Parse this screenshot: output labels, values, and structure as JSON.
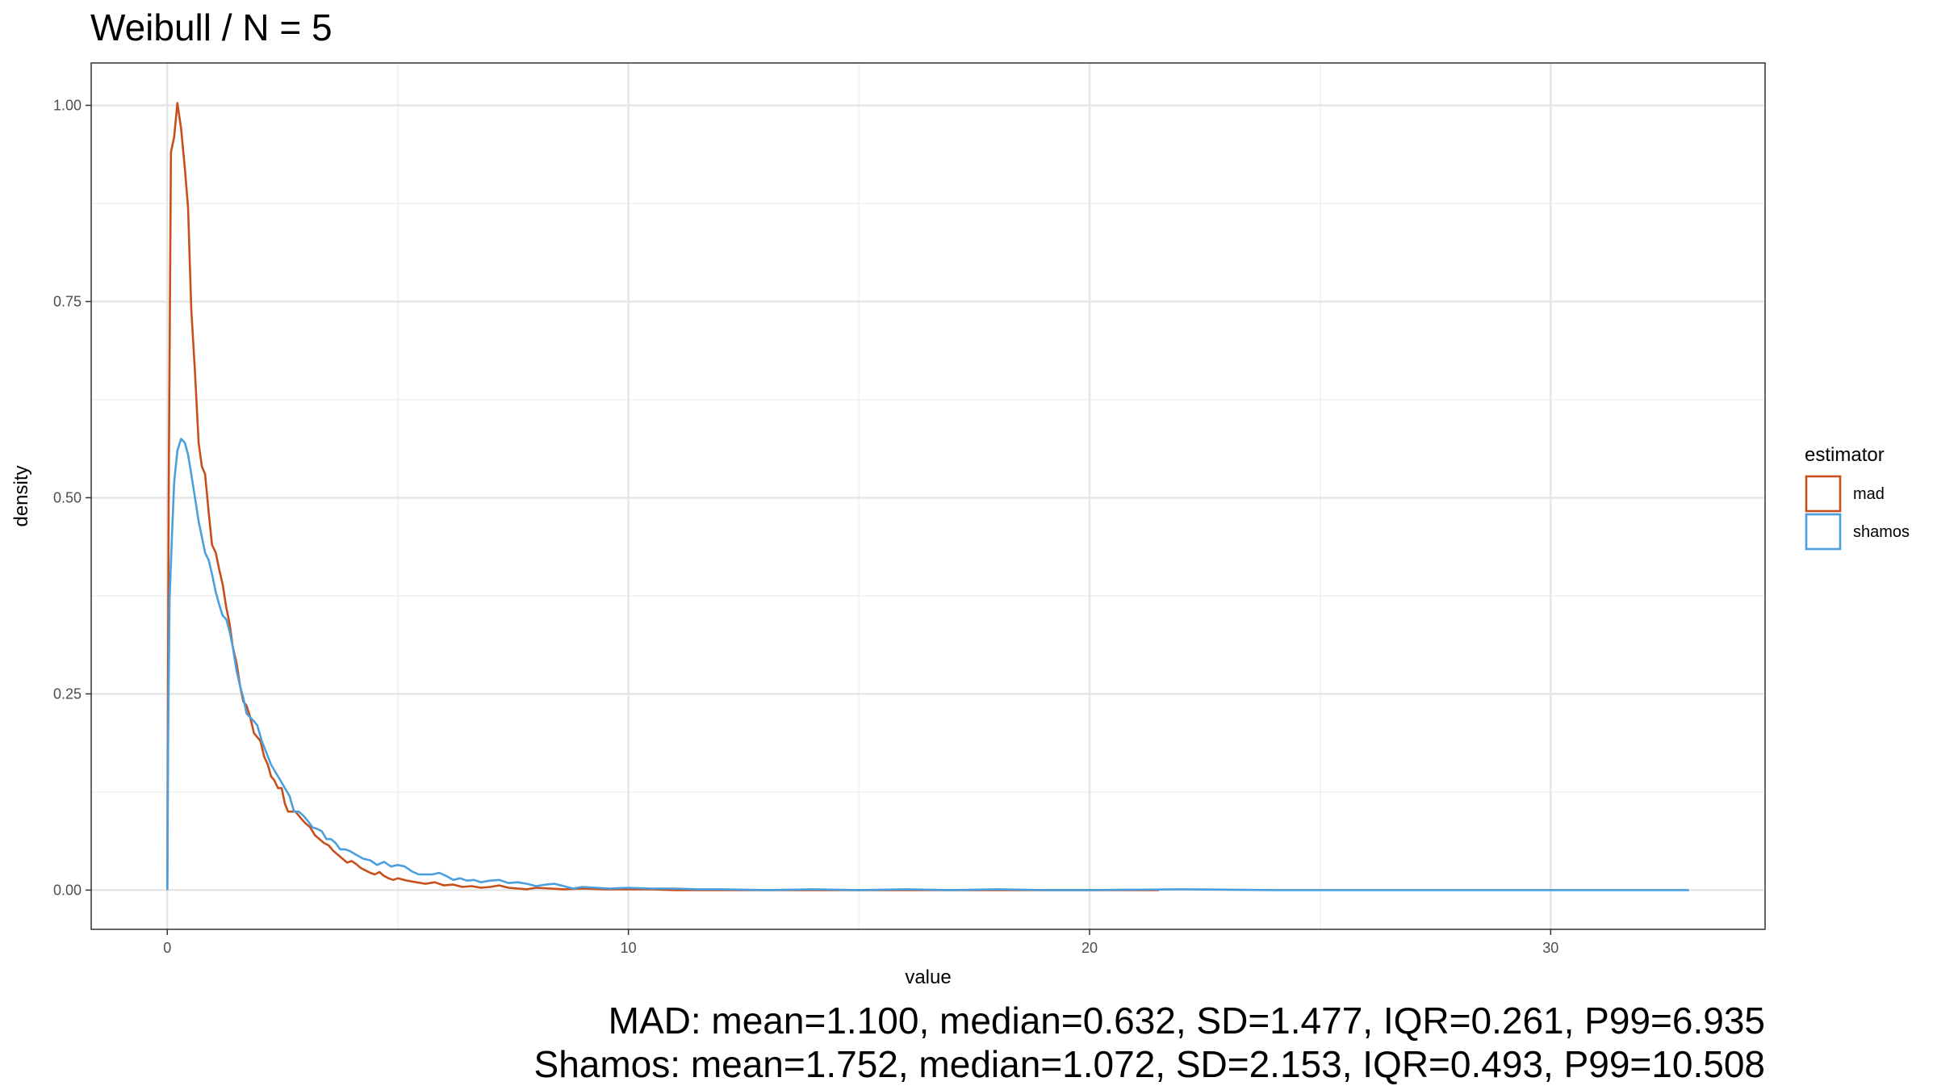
{
  "chart_data": {
    "type": "line",
    "title": "Weibull / N = 5",
    "xlabel": "value",
    "ylabel": "density",
    "xlim": [
      -1.65,
      34.65
    ],
    "ylim": [
      -0.05,
      1.054
    ],
    "x_ticks": [
      0,
      10,
      20,
      30
    ],
    "x_tick_labels": [
      "0",
      "10",
      "20",
      "30"
    ],
    "y_ticks": [
      0,
      0.25,
      0.5,
      0.75,
      1.0
    ],
    "y_tick_labels": [
      "0.00",
      "0.25",
      "0.50",
      "0.75",
      "1.00"
    ],
    "grid": true,
    "legend": {
      "title": "estimator",
      "position": "right"
    },
    "series": [
      {
        "name": "mad",
        "color": "#C84F1B",
        "points": [
          [
            0.0,
            0.0
          ],
          [
            0.03,
            0.5
          ],
          [
            0.08,
            0.94
          ],
          [
            0.15,
            0.96
          ],
          [
            0.22,
            1.003
          ],
          [
            0.3,
            0.97
          ],
          [
            0.38,
            0.92
          ],
          [
            0.45,
            0.87
          ],
          [
            0.52,
            0.74
          ],
          [
            0.6,
            0.66
          ],
          [
            0.68,
            0.57
          ],
          [
            0.75,
            0.54
          ],
          [
            0.82,
            0.53
          ],
          [
            0.9,
            0.48
          ],
          [
            0.97,
            0.44
          ],
          [
            1.05,
            0.43
          ],
          [
            1.12,
            0.41
          ],
          [
            1.2,
            0.39
          ],
          [
            1.28,
            0.36
          ],
          [
            1.35,
            0.34
          ],
          [
            1.42,
            0.31
          ],
          [
            1.5,
            0.29
          ],
          [
            1.58,
            0.26
          ],
          [
            1.65,
            0.24
          ],
          [
            1.72,
            0.235
          ],
          [
            1.8,
            0.22
          ],
          [
            1.88,
            0.2
          ],
          [
            1.95,
            0.195
          ],
          [
            2.02,
            0.19
          ],
          [
            2.1,
            0.17
          ],
          [
            2.18,
            0.16
          ],
          [
            2.25,
            0.145
          ],
          [
            2.32,
            0.14
          ],
          [
            2.4,
            0.13
          ],
          [
            2.48,
            0.13
          ],
          [
            2.55,
            0.11
          ],
          [
            2.62,
            0.1
          ],
          [
            2.7,
            0.1
          ],
          [
            2.78,
            0.1
          ],
          [
            2.85,
            0.095
          ],
          [
            2.92,
            0.09
          ],
          [
            3.0,
            0.085
          ],
          [
            3.1,
            0.08
          ],
          [
            3.2,
            0.07
          ],
          [
            3.3,
            0.065
          ],
          [
            3.4,
            0.06
          ],
          [
            3.5,
            0.057
          ],
          [
            3.6,
            0.05
          ],
          [
            3.7,
            0.045
          ],
          [
            3.8,
            0.04
          ],
          [
            3.9,
            0.035
          ],
          [
            4.0,
            0.037
          ],
          [
            4.1,
            0.033
          ],
          [
            4.2,
            0.028
          ],
          [
            4.3,
            0.025
          ],
          [
            4.4,
            0.022
          ],
          [
            4.5,
            0.02
          ],
          [
            4.6,
            0.023
          ],
          [
            4.7,
            0.018
          ],
          [
            4.8,
            0.015
          ],
          [
            4.9,
            0.013
          ],
          [
            5.0,
            0.015
          ],
          [
            5.2,
            0.012
          ],
          [
            5.4,
            0.01
          ],
          [
            5.6,
            0.008
          ],
          [
            5.8,
            0.01
          ],
          [
            6.0,
            0.006
          ],
          [
            6.2,
            0.007
          ],
          [
            6.4,
            0.004
          ],
          [
            6.6,
            0.005
          ],
          [
            6.8,
            0.003
          ],
          [
            7.0,
            0.004
          ],
          [
            7.2,
            0.006
          ],
          [
            7.4,
            0.003
          ],
          [
            7.6,
            0.002
          ],
          [
            7.8,
            0.001
          ],
          [
            8.0,
            0.003
          ],
          [
            8.3,
            0.002
          ],
          [
            8.6,
            0.001
          ],
          [
            9.0,
            0.002
          ],
          [
            9.5,
            0.001
          ],
          [
            10.0,
            0.001
          ],
          [
            10.5,
            0.001
          ],
          [
            11.0,
            0.0
          ],
          [
            12.0,
            0.0
          ],
          [
            13.0,
            0.0
          ],
          [
            14.0,
            0.0
          ],
          [
            15.0,
            0.0
          ],
          [
            16.0,
            0.0
          ],
          [
            17.0,
            0.0
          ],
          [
            18.0,
            0.0
          ],
          [
            19.0,
            0.0
          ],
          [
            20.0,
            0.0
          ],
          [
            21.0,
            0.0
          ],
          [
            21.5,
            0.0
          ]
        ]
      },
      {
        "name": "shamos",
        "color": "#4A9FDC",
        "points": [
          [
            0.0,
            0.0
          ],
          [
            0.02,
            0.2
          ],
          [
            0.05,
            0.37
          ],
          [
            0.1,
            0.45
          ],
          [
            0.15,
            0.52
          ],
          [
            0.22,
            0.56
          ],
          [
            0.3,
            0.575
          ],
          [
            0.38,
            0.57
          ],
          [
            0.45,
            0.555
          ],
          [
            0.52,
            0.53
          ],
          [
            0.6,
            0.5
          ],
          [
            0.68,
            0.47
          ],
          [
            0.75,
            0.45
          ],
          [
            0.82,
            0.43
          ],
          [
            0.9,
            0.42
          ],
          [
            0.98,
            0.4
          ],
          [
            1.05,
            0.38
          ],
          [
            1.12,
            0.365
          ],
          [
            1.2,
            0.35
          ],
          [
            1.28,
            0.345
          ],
          [
            1.35,
            0.33
          ],
          [
            1.42,
            0.31
          ],
          [
            1.5,
            0.28
          ],
          [
            1.58,
            0.26
          ],
          [
            1.65,
            0.245
          ],
          [
            1.72,
            0.225
          ],
          [
            1.8,
            0.22
          ],
          [
            1.88,
            0.215
          ],
          [
            1.95,
            0.21
          ],
          [
            2.05,
            0.19
          ],
          [
            2.15,
            0.175
          ],
          [
            2.25,
            0.16
          ],
          [
            2.35,
            0.15
          ],
          [
            2.45,
            0.14
          ],
          [
            2.55,
            0.13
          ],
          [
            2.65,
            0.12
          ],
          [
            2.75,
            0.1
          ],
          [
            2.85,
            0.1
          ],
          [
            2.95,
            0.095
          ],
          [
            3.05,
            0.088
          ],
          [
            3.15,
            0.08
          ],
          [
            3.25,
            0.078
          ],
          [
            3.35,
            0.075
          ],
          [
            3.45,
            0.065
          ],
          [
            3.55,
            0.065
          ],
          [
            3.65,
            0.06
          ],
          [
            3.75,
            0.052
          ],
          [
            3.85,
            0.052
          ],
          [
            3.95,
            0.05
          ],
          [
            4.1,
            0.045
          ],
          [
            4.25,
            0.04
          ],
          [
            4.4,
            0.038
          ],
          [
            4.55,
            0.032
          ],
          [
            4.7,
            0.036
          ],
          [
            4.85,
            0.03
          ],
          [
            5.0,
            0.032
          ],
          [
            5.15,
            0.03
          ],
          [
            5.3,
            0.024
          ],
          [
            5.45,
            0.02
          ],
          [
            5.6,
            0.02
          ],
          [
            5.75,
            0.02
          ],
          [
            5.9,
            0.022
          ],
          [
            6.05,
            0.018
          ],
          [
            6.2,
            0.013
          ],
          [
            6.35,
            0.015
          ],
          [
            6.5,
            0.012
          ],
          [
            6.65,
            0.013
          ],
          [
            6.8,
            0.01
          ],
          [
            7.0,
            0.012
          ],
          [
            7.2,
            0.013
          ],
          [
            7.4,
            0.009
          ],
          [
            7.6,
            0.01
          ],
          [
            7.8,
            0.008
          ],
          [
            8.0,
            0.005
          ],
          [
            8.2,
            0.007
          ],
          [
            8.4,
            0.008
          ],
          [
            8.6,
            0.005
          ],
          [
            8.8,
            0.002
          ],
          [
            9.0,
            0.004
          ],
          [
            9.3,
            0.003
          ],
          [
            9.6,
            0.002
          ],
          [
            10.0,
            0.003
          ],
          [
            10.5,
            0.002
          ],
          [
            11.0,
            0.002
          ],
          [
            11.5,
            0.001
          ],
          [
            12.0,
            0.001
          ],
          [
            13.0,
            0.0
          ],
          [
            14.0,
            0.001
          ],
          [
            15.0,
            0.0
          ],
          [
            16.0,
            0.001
          ],
          [
            17.0,
            0.0
          ],
          [
            18.0,
            0.001
          ],
          [
            19.0,
            0.0
          ],
          [
            20.0,
            0.0
          ],
          [
            22.0,
            0.001
          ],
          [
            24.0,
            0.0
          ],
          [
            26.0,
            0.0
          ],
          [
            28.0,
            0.0
          ],
          [
            30.0,
            0.0
          ],
          [
            31.5,
            0.0
          ],
          [
            33.0,
            0.0
          ]
        ]
      }
    ]
  },
  "caption": {
    "line1": "MAD: mean=1.100, median=0.632, SD=1.477, IQR=0.261, P99=6.935",
    "line2": "Shamos: mean=1.752, median=1.072, SD=2.153, IQR=0.493, P99=10.508"
  }
}
